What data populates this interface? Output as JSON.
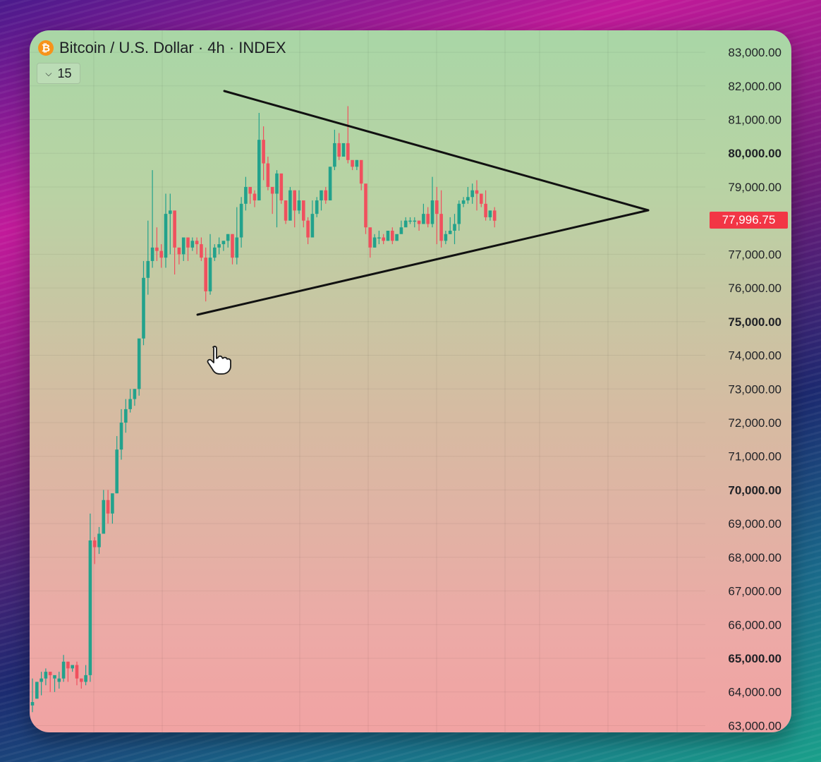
{
  "header": {
    "symbol_title": "Bitcoin / U.S. Dollar · 4h · INDEX",
    "logo_glyph": "₿",
    "interval_count": "15"
  },
  "price_tag": {
    "value": "77,996.75"
  },
  "colors": {
    "up": "#22a28c",
    "down": "#f0505e",
    "price_tag": "#f23645",
    "trendline": "#111111"
  },
  "icons": [
    "bitcoin-logo-icon",
    "chevron-down-icon",
    "hand-pointer-icon"
  ],
  "chart_data": {
    "type": "candlestick",
    "ylim": [
      62800,
      83400
    ],
    "y_ticks": [
      {
        "value": 83000,
        "label": "83,000.00",
        "bold": false
      },
      {
        "value": 82000,
        "label": "82,000.00",
        "bold": false
      },
      {
        "value": 81000,
        "label": "81,000.00",
        "bold": false
      },
      {
        "value": 80000,
        "label": "80,000.00",
        "bold": true
      },
      {
        "value": 79000,
        "label": "79,000.00",
        "bold": false
      },
      {
        "value": 77000,
        "label": "77,000.00",
        "bold": false
      },
      {
        "value": 76000,
        "label": "76,000.00",
        "bold": false
      },
      {
        "value": 75000,
        "label": "75,000.00",
        "bold": true
      },
      {
        "value": 74000,
        "label": "74,000.00",
        "bold": false
      },
      {
        "value": 73000,
        "label": "73,000.00",
        "bold": false
      },
      {
        "value": 72000,
        "label": "72,000.00",
        "bold": false
      },
      {
        "value": 71000,
        "label": "71,000.00",
        "bold": false
      },
      {
        "value": 70000,
        "label": "70,000.00",
        "bold": true
      },
      {
        "value": 69000,
        "label": "69,000.00",
        "bold": false
      },
      {
        "value": 68000,
        "label": "68,000.00",
        "bold": false
      },
      {
        "value": 67000,
        "label": "67,000.00",
        "bold": false
      },
      {
        "value": 66000,
        "label": "66,000.00",
        "bold": false
      },
      {
        "value": 65000,
        "label": "65,000.00",
        "bold": true
      },
      {
        "value": 64000,
        "label": "64,000.00",
        "bold": false
      },
      {
        "value": 63000,
        "label": "63,000.00",
        "bold": false
      }
    ],
    "last_price": 77996.75,
    "candles": [
      [
        63600,
        63700,
        63400,
        64400
      ],
      [
        63800,
        64300,
        64300,
        63800
      ],
      [
        64300,
        64400,
        64600,
        63900
      ],
      [
        64400,
        64600,
        64700,
        64200
      ],
      [
        64600,
        64500,
        64600,
        64000
      ],
      [
        64400,
        64500,
        64400,
        64000
      ],
      [
        64300,
        64400,
        64600,
        64100
      ],
      [
        64400,
        64900,
        65100,
        64300
      ],
      [
        64900,
        64700,
        64900,
        64300
      ],
      [
        64700,
        64800,
        64800,
        64600
      ],
      [
        64800,
        64400,
        64900,
        64200
      ],
      [
        64400,
        64300,
        64400,
        64100
      ],
      [
        64300,
        64500,
        64800,
        64200
      ],
      [
        64500,
        68500,
        69300,
        64300
      ],
      [
        68500,
        68300,
        68600,
        67800
      ],
      [
        68300,
        68700,
        68900,
        68100
      ],
      [
        68700,
        69700,
        70000,
        68800
      ],
      [
        69700,
        69300,
        70000,
        69000
      ],
      [
        69300,
        69900,
        69800,
        69000
      ],
      [
        69900,
        71200,
        71600,
        69900
      ],
      [
        71200,
        72000,
        72400,
        70900
      ],
      [
        72000,
        72400,
        72700,
        71700
      ],
      [
        72400,
        72700,
        73000,
        72300
      ],
      [
        72700,
        73000,
        73000,
        72500
      ],
      [
        73000,
        74500,
        74400,
        72800
      ],
      [
        74500,
        76300,
        76800,
        74300
      ],
      [
        76300,
        76800,
        78000,
        75800
      ],
      [
        76800,
        77200,
        79500,
        76600
      ],
      [
        77200,
        77100,
        77800,
        76800
      ],
      [
        77100,
        76900,
        77300,
        76600
      ],
      [
        76900,
        78200,
        78800,
        76600
      ],
      [
        78200,
        78300,
        78800,
        77000
      ],
      [
        78300,
        77200,
        78200,
        76400
      ],
      [
        77200,
        77000,
        77100,
        76700
      ],
      [
        77000,
        77500,
        77300,
        76800
      ],
      [
        77500,
        77200,
        77400,
        76800
      ],
      [
        77200,
        77400,
        77500,
        77100
      ],
      [
        77400,
        77300,
        77500,
        77000
      ],
      [
        77300,
        76900,
        77500,
        76800
      ],
      [
        76900,
        75900,
        77200,
        75600
      ],
      [
        75900,
        76900,
        77600,
        75800
      ],
      [
        76900,
        77200,
        77300,
        76800
      ],
      [
        77200,
        77300,
        77500,
        77000
      ],
      [
        77300,
        77400,
        77400,
        77100
      ],
      [
        77400,
        77600,
        77600,
        77200
      ],
      [
        77600,
        76900,
        77600,
        76700
      ],
      [
        76900,
        77500,
        78400,
        76700
      ],
      [
        77500,
        78500,
        78700,
        77200
      ],
      [
        78500,
        79000,
        79300,
        78300
      ],
      [
        79000,
        78800,
        79000,
        78500
      ],
      [
        78800,
        78600,
        78900,
        78400
      ],
      [
        78600,
        80400,
        81200,
        78700
      ],
      [
        80400,
        79700,
        80800,
        79200
      ],
      [
        79700,
        79000,
        79900,
        78900
      ],
      [
        79000,
        78800,
        79000,
        78200
      ],
      [
        78800,
        79400,
        79500,
        77800
      ],
      [
        79400,
        78600,
        79200,
        78500
      ],
      [
        78600,
        78000,
        78600,
        77900
      ],
      [
        78000,
        78900,
        79000,
        78200
      ],
      [
        78900,
        78300,
        78900,
        77800
      ],
      [
        78300,
        78600,
        78900,
        78200
      ],
      [
        78600,
        78000,
        78500,
        77800
      ],
      [
        78000,
        77500,
        78100,
        77300
      ],
      [
        77500,
        78200,
        78600,
        77700
      ],
      [
        78200,
        78600,
        78700,
        78100
      ],
      [
        78600,
        78900,
        78800,
        78300
      ],
      [
        78900,
        78600,
        79000,
        78500
      ],
      [
        78600,
        79600,
        79600,
        78900
      ],
      [
        79600,
        80300,
        80700,
        79500
      ],
      [
        80300,
        79900,
        80600,
        79800
      ],
      [
        79900,
        80300,
        80300,
        80000
      ],
      [
        80300,
        79800,
        81400,
        79700
      ],
      [
        79800,
        79600,
        79700,
        79500
      ],
      [
        79600,
        79800,
        79800,
        79500
      ],
      [
        79800,
        79100,
        79700,
        78900
      ],
      [
        79100,
        77800,
        78800,
        77600
      ],
      [
        77800,
        77200,
        77200,
        76900
      ],
      [
        77200,
        77500,
        77600,
        77200
      ],
      [
        77500,
        77500,
        77700,
        77300
      ],
      [
        77500,
        77400,
        77600,
        77300
      ],
      [
        77400,
        77700,
        77600,
        77400
      ],
      [
        77700,
        77400,
        77800,
        77300
      ],
      [
        77400,
        77600,
        77500,
        77400
      ],
      [
        77600,
        77800,
        78000,
        77700
      ],
      [
        77800,
        78000,
        78100,
        77900
      ],
      [
        78000,
        78000,
        78100,
        77900
      ],
      [
        78000,
        78000,
        78100,
        77800
      ],
      [
        78000,
        77900,
        78000,
        77700
      ],
      [
        77900,
        78200,
        78500,
        77900
      ],
      [
        78200,
        77900,
        78400,
        77800
      ],
      [
        77900,
        78600,
        79300,
        77800
      ],
      [
        78600,
        78200,
        79000,
        77300
      ],
      [
        78200,
        77400,
        78900,
        77200
      ],
      [
        77400,
        77600,
        77700,
        77300
      ],
      [
        77600,
        77700,
        78100,
        77600
      ],
      [
        77700,
        77900,
        78200,
        77300
      ],
      [
        77900,
        78500,
        78600,
        77700
      ],
      [
        78500,
        78600,
        78700,
        78400
      ],
      [
        78600,
        78700,
        79000,
        78500
      ],
      [
        78700,
        78900,
        79100,
        78500
      ],
      [
        78900,
        78800,
        79200,
        78300
      ],
      [
        78800,
        78500,
        78800,
        78400
      ],
      [
        78500,
        78100,
        78900,
        78000
      ],
      [
        78100,
        78300,
        78300,
        78000
      ],
      [
        78300,
        77996,
        78400,
        77800
      ]
    ]
  }
}
